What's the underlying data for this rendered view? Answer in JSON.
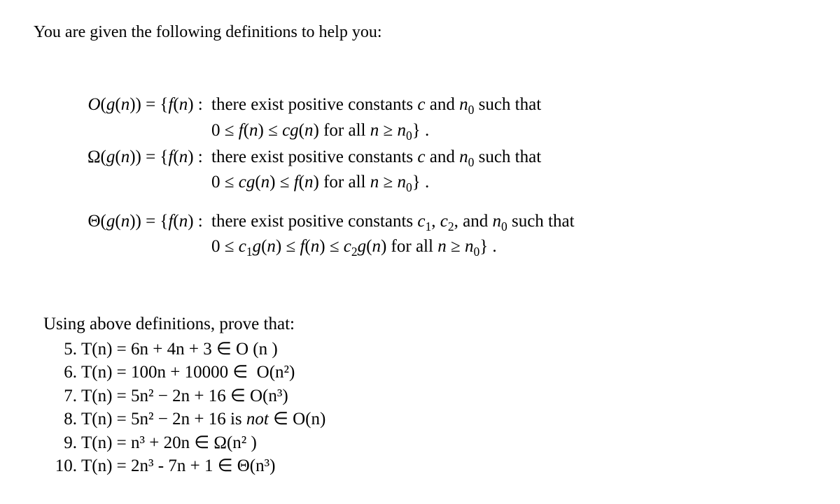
{
  "text_color": "#000000",
  "background_color": "#ffffff",
  "font_family": "Times New Roman",
  "intro": "You are given the following definitions to help you:",
  "defs": {
    "bigO": {
      "lhs_html": "O(g(n)) = {f(n) :",
      "rhs": "there exist positive constants c and n₀ such that",
      "cond": "0 ≤ f(n) ≤ cg(n) for all n ≥ n₀} ."
    },
    "bigOmega": {
      "lhs_html": "Ω(g(n)) = {f(n) :",
      "rhs": "there exist positive constants c and n₀ such that",
      "cond": "0 ≤ cg(n) ≤ f(n) for all n ≥ n₀} ."
    },
    "bigTheta": {
      "lhs_html": "Θ(g(n)) = {f(n) :",
      "rhs": "there exist positive constants c₁, c₂, and n₀ such that",
      "cond": "0 ≤ c₁g(n) ≤ f(n) ≤ c₂g(n) for all n ≥ n₀} ."
    }
  },
  "using_header": "Using above definitions, prove that:",
  "problems": [
    {
      "num": "5.",
      "text": "T(n) = 6n + 4n + 3 ∈ O (n )"
    },
    {
      "num": "6.",
      "text": "T(n) = 100n + 10000 ∈  O(n²)"
    },
    {
      "num": "7.",
      "text": "T(n) = 5n² − 2n + 16 ∈ O(n³)"
    },
    {
      "num": "8.",
      "text": "T(n) = 5n² − 2n + 16 is not ∈ O(n)"
    },
    {
      "num": "9.",
      "text": "T(n) = n³ + 20n ∈ Ω(n² )"
    },
    {
      "num": "10.",
      "text": "T(n) = 2n³ - 7n + 1 ∈ Θ(n³)"
    }
  ]
}
